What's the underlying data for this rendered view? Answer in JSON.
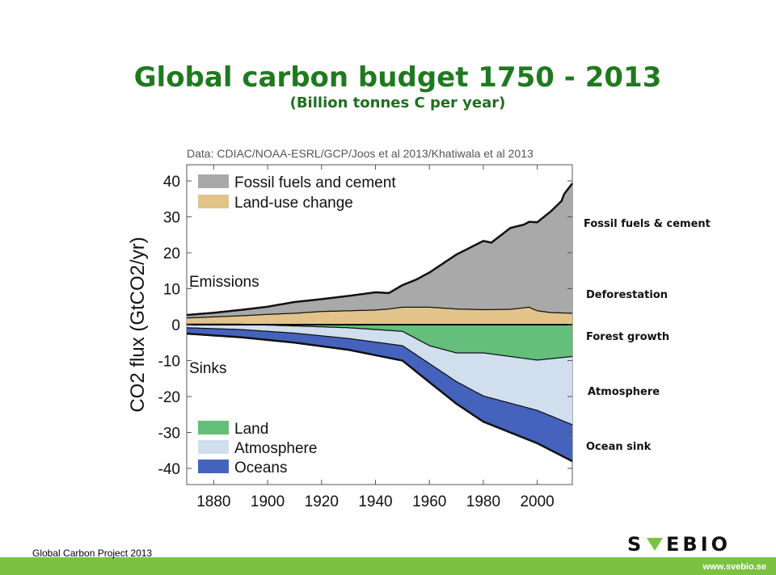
{
  "title": "Global carbon budget 1750 - 2013",
  "subtitle": "(Billion tonnes C per year)",
  "annotations": {
    "fossil": "Fossil fuels & cement",
    "deforestation": "Deforestation",
    "forest_growth": "Forest growth",
    "atmosphere": "Atmosphere",
    "ocean_sink": "Ocean sink"
  },
  "footer": {
    "source": "Global Carbon Project  2013",
    "logo_text": "SVEBIO",
    "url": "www.svebio.se"
  },
  "colors": {
    "title_green": "#1f7a1f",
    "fossil": "#a9a9a9",
    "land_use": "#e2c48a",
    "land_sink": "#63bf7a",
    "atmosphere": "#d0deee",
    "oceans": "#4562bd",
    "footer_green": "#7cc242"
  },
  "chart_data": {
    "type": "area",
    "source_note": "Data: CDIAC/NOAA-ESRL/GCP/Joos et al 2013/Khatiwala et al 2013",
    "ylabel": "CO2 flux (GtCO2/yr)",
    "xlim": [
      1870,
      2013
    ],
    "ylim": [
      -40,
      40
    ],
    "xticks": [
      1880,
      1900,
      1920,
      1940,
      1960,
      1980,
      2000
    ],
    "yticks": [
      40,
      30,
      20,
      10,
      0,
      -10,
      -20,
      -30,
      -40
    ],
    "grid": false,
    "legend_position": "left",
    "section_labels": {
      "emissions": "Emissions",
      "sinks": "Sinks"
    },
    "emissions_series": [
      {
        "name": "Land-use change",
        "x": [
          1870,
          1880,
          1890,
          1900,
          1910,
          1920,
          1930,
          1940,
          1945,
          1950,
          1955,
          1960,
          1970,
          1980,
          1990,
          1997,
          2000,
          2005,
          2013
        ],
        "y": [
          2,
          2.3,
          2.6,
          3,
          3.3,
          3.8,
          4,
          4.2,
          4.5,
          5,
          5,
          5,
          4.5,
          4.3,
          4.4,
          5,
          4,
          3.5,
          3.3
        ]
      },
      {
        "name": "Fossil fuels and cement",
        "x": [
          1870,
          1880,
          1890,
          1900,
          1910,
          1920,
          1930,
          1940,
          1945,
          1950,
          1955,
          1960,
          1970,
          1980,
          1983,
          1990,
          1995,
          2000,
          2005,
          2009,
          2010,
          2013
        ],
        "y": [
          0.7,
          1,
          1.5,
          2,
          3,
          3.3,
          4,
          4.8,
          4.3,
          6,
          7.5,
          9.5,
          15,
          19,
          18.5,
          22.5,
          23,
          24.5,
          28,
          31,
          33,
          36
        ]
      }
    ],
    "sinks_series": [
      {
        "name": "Land",
        "x": [
          1870,
          1890,
          1910,
          1930,
          1950,
          1960,
          1970,
          1980,
          1990,
          2000,
          2013
        ],
        "y": [
          0,
          0,
          -0.5,
          -1,
          -2,
          -6,
          -8,
          -8,
          -9,
          -10,
          -9
        ]
      },
      {
        "name": "Atmosphere",
        "x": [
          1870,
          1890,
          1910,
          1930,
          1950,
          1960,
          1970,
          1980,
          1990,
          2000,
          2013
        ],
        "y": [
          -1,
          -1.5,
          -2,
          -3,
          -4,
          -5,
          -8,
          -12,
          -13,
          -14,
          -19
        ]
      },
      {
        "name": "Oceans",
        "x": [
          1870,
          1890,
          1910,
          1930,
          1950,
          1960,
          1970,
          1980,
          1990,
          2000,
          2013
        ],
        "y": [
          -1.5,
          -2,
          -2.5,
          -3,
          -4,
          -5,
          -6,
          -7,
          -8,
          -9,
          -10
        ]
      }
    ]
  }
}
